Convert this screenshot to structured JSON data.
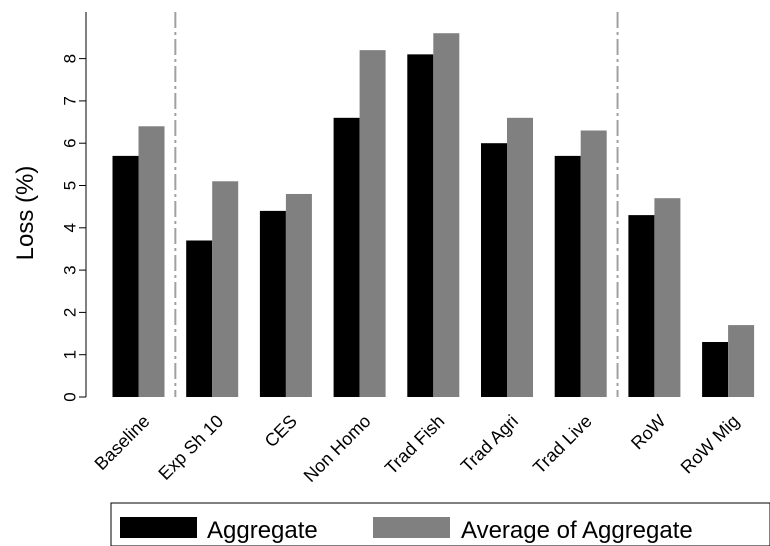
{
  "chart_data": {
    "type": "bar",
    "title": "",
    "xlabel": "",
    "ylabel": "Loss (%)",
    "ylim": [
      0,
      9
    ],
    "yticks": [
      0,
      1,
      2,
      3,
      4,
      5,
      6,
      7,
      8
    ],
    "categories": [
      "Baseline",
      "Exp Sh 10",
      "CES",
      "Non Homo",
      "Trad Fish",
      "Trad Agri",
      "Trad Live",
      "RoW",
      "RoW Mig"
    ],
    "series": [
      {
        "name": "Aggregate",
        "color": "#000000",
        "values": [
          5.7,
          3.7,
          4.4,
          6.6,
          8.1,
          6.0,
          5.7,
          4.3,
          1.3
        ]
      },
      {
        "name": "Average of Aggregate",
        "color": "#808080",
        "values": [
          6.4,
          5.1,
          4.8,
          8.2,
          8.6,
          6.6,
          6.3,
          4.7,
          1.7
        ]
      }
    ],
    "separators_after_category_index": [
      0,
      6
    ],
    "grid": false,
    "legend_position": "bottom"
  }
}
